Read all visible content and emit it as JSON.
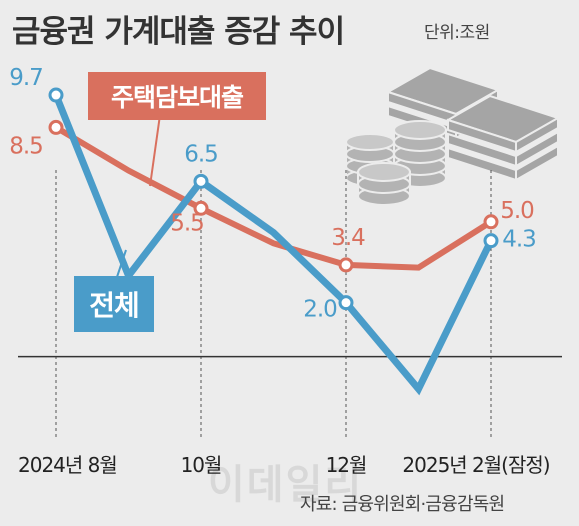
{
  "title": "금융권 가계대출 증감 추이",
  "unit": "단위:조원",
  "source": "자료: 금융위원회·금융감독원",
  "watermark": "이데일리",
  "icon": "money-stack-icon",
  "colors": {
    "total": "#4a9cc9",
    "mortgage": "#d9705e",
    "background": "#ececec"
  },
  "chart_data": {
    "type": "line",
    "x": [
      "2024-08",
      "2024-09",
      "2024-10",
      "2024-11",
      "2024-12",
      "2025-01",
      "2025-02"
    ],
    "x_tick_labels": [
      "2024년 8월",
      "10월",
      "12월",
      "2025년 2월(잠정)"
    ],
    "ylim": [
      -2.5,
      11
    ],
    "series": [
      {
        "name": "전체",
        "key": "total",
        "values": [
          9.7,
          3.0,
          6.5,
          4.6,
          2.0,
          -1.2,
          4.3
        ],
        "labeled": [
          0,
          2,
          4,
          6
        ]
      },
      {
        "name": "주택담보대출",
        "key": "mortgage",
        "values": [
          8.5,
          6.9,
          5.5,
          4.2,
          3.4,
          3.3,
          5.0
        ],
        "labeled": [
          0,
          2,
          4,
          6
        ]
      }
    ],
    "point_labels": {
      "total": [
        "9.7",
        "6.5",
        "2.0",
        "4.3"
      ],
      "mortgage": [
        "8.5",
        "5.5",
        "3.4",
        "5.0"
      ]
    }
  }
}
